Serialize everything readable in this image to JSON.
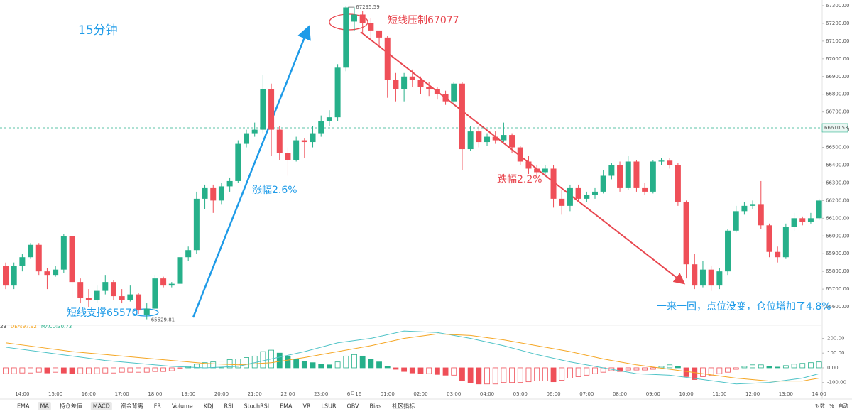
{
  "chart_data": [
    {
      "type": "candlestick",
      "categories": [
        null,
        null,
        "14:00",
        null,
        null,
        null,
        "15:00",
        null,
        null,
        null,
        "16:00",
        null,
        null,
        null,
        "17:00",
        null,
        null,
        null,
        "18:00",
        null,
        null,
        null,
        "19:00",
        null,
        null,
        null,
        "20:00",
        null,
        null,
        null,
        "21:00",
        null,
        null,
        null,
        "22:00",
        null,
        null,
        null,
        "23:00",
        null,
        null,
        null,
        "6月16",
        null,
        null,
        null,
        "01:00",
        null,
        null,
        null,
        "02:00",
        null,
        null,
        null,
        "03:00",
        null,
        null,
        null,
        "04:00",
        null,
        null,
        null,
        "05:00",
        null,
        null,
        null,
        "06:00",
        null,
        null,
        null,
        "07:00",
        null,
        null,
        null,
        "08:00",
        null,
        null,
        null,
        "09:00",
        null,
        null,
        null,
        "10:00",
        null,
        null,
        null,
        "11:00",
        null,
        null,
        null,
        "12:00",
        null,
        null,
        null,
        "13:00",
        null,
        null,
        null,
        "14:00"
      ],
      "open": [
        65830,
        65720,
        65830,
        65880,
        65950,
        65800,
        65780,
        65810,
        66000,
        65740,
        65650,
        65640,
        65690,
        65740,
        65660,
        65640,
        65670,
        65555,
        65590,
        65760,
        65720,
        65730,
        65880,
        65920,
        66210,
        66270,
        66200,
        66280,
        66310,
        66520,
        66580,
        66600,
        66830,
        66600,
        66470,
        66430,
        66540,
        66530,
        66580,
        66650,
        66670,
        66950,
        67210,
        67250,
        67200,
        67160,
        67120,
        66880,
        66830,
        66900,
        66880,
        66840,
        66830,
        66800,
        66760,
        66860,
        66490,
        66590,
        66530,
        66560,
        66540,
        66570,
        66500,
        66420,
        66380,
        66360,
        66380,
        66210,
        66170,
        66270,
        66210,
        66230,
        66250,
        66340,
        66400,
        66270,
        66420,
        66270,
        66250,
        66420,
        66425,
        66400,
        66190,
        65840,
        65720,
        65810,
        65720,
        65800,
        66030,
        66140,
        66170,
        66180,
        66060,
        65910,
        65880,
        66050,
        66100,
        66080,
        66100
      ],
      "high": [
        65850,
        65850,
        65900,
        65960,
        65960,
        65820,
        65830,
        66010,
        66000,
        65760,
        65700,
        65720,
        65780,
        65750,
        65700,
        65720,
        65680,
        65620,
        65780,
        65770,
        65740,
        65890,
        65940,
        66250,
        66290,
        66290,
        66300,
        66330,
        66540,
        66600,
        66640,
        66910,
        66860,
        66620,
        66500,
        66560,
        66550,
        66620,
        66680,
        66710,
        66970,
        67295.59,
        67290,
        67270,
        67230,
        67150,
        67130,
        66920,
        66920,
        66940,
        66900,
        66870,
        66840,
        66820,
        66870,
        66870,
        66620,
        66620,
        66580,
        66590,
        66640,
        66580,
        66510,
        66450,
        66400,
        66400,
        66400,
        66260,
        66290,
        66290,
        66250,
        66270,
        66370,
        66410,
        66420,
        66450,
        66430,
        66300,
        66430,
        66440,
        66440,
        66410,
        66200,
        65900,
        65860,
        65830,
        65820,
        66040,
        66170,
        66190,
        66200,
        66310,
        66070,
        65940,
        66070,
        66130,
        66110,
        66130,
        66210
      ],
      "low": [
        65700,
        65700,
        65800,
        65870,
        65780,
        65700,
        65770,
        65790,
        65650,
        65620,
        65600,
        65620,
        65670,
        65640,
        65620,
        65630,
        65560,
        65529.81,
        65580,
        65710,
        65710,
        65720,
        65860,
        65900,
        66150,
        66130,
        66180,
        66250,
        66300,
        66500,
        66560,
        66580,
        66450,
        66430,
        66340,
        66420,
        66440,
        66500,
        66560,
        66620,
        66650,
        66930,
        67160,
        67140,
        67100,
        67070,
        66780,
        66760,
        66760,
        66840,
        66800,
        66790,
        66770,
        66740,
        66740,
        66370,
        66480,
        66500,
        66510,
        66520,
        66530,
        66470,
        66400,
        66350,
        66330,
        66340,
        66160,
        66120,
        66140,
        66190,
        66190,
        66210,
        66240,
        66320,
        66250,
        66260,
        66250,
        66230,
        66240,
        66400,
        66380,
        66170,
        65760,
        65700,
        65710,
        65690,
        65700,
        65780,
        66020,
        66120,
        66150,
        66040,
        65880,
        65850,
        65870,
        66030,
        66060,
        66070,
        66090
      ],
      "close": [
        65720,
        65830,
        65880,
        65950,
        65800,
        65780,
        65810,
        66000,
        65740,
        65650,
        65640,
        65690,
        65740,
        65660,
        65640,
        65670,
        65580,
        65590,
        65760,
        65720,
        65730,
        65880,
        65920,
        66210,
        66270,
        66200,
        66280,
        66310,
        66520,
        66580,
        66600,
        66830,
        66600,
        66470,
        66430,
        66540,
        66530,
        66580,
        66650,
        66670,
        66950,
        67290,
        67250,
        67200,
        67160,
        67120,
        66880,
        66830,
        66900,
        66880,
        66840,
        66830,
        66800,
        66760,
        66860,
        66490,
        66590,
        66530,
        66560,
        66540,
        66570,
        66500,
        66420,
        66380,
        66360,
        66380,
        66210,
        66170,
        66270,
        66210,
        66230,
        66250,
        66340,
        66400,
        66270,
        66420,
        66270,
        66250,
        66420,
        66425,
        66400,
        66190,
        65840,
        65720,
        65810,
        65720,
        65800,
        66030,
        66140,
        66170,
        66180,
        66060,
        65910,
        65880,
        66050,
        66100,
        66080,
        66100,
        66200
      ],
      "up_color": "#26b08a",
      "down_color": "#ef4f58",
      "ylim": [
        65508,
        67332
      ],
      "yticks": [
        {
          "value": 65600,
          "label": "65600.00"
        },
        {
          "value": 65700,
          "label": "65700.00"
        },
        {
          "value": 65800,
          "label": "65800.00"
        },
        {
          "value": 65900,
          "label": "65900.00"
        },
        {
          "value": 66000,
          "label": "66000.00"
        },
        {
          "value": 66100,
          "label": "66100.00"
        },
        {
          "value": 66200,
          "label": "66200.00"
        },
        {
          "value": 66300,
          "label": "66300.00"
        },
        {
          "value": 66400,
          "label": "66400.00"
        },
        {
          "value": 66500,
          "label": "66500.00"
        },
        {
          "value": 66600,
          "label": "66600.00"
        },
        {
          "value": 66700,
          "label": "66700.00"
        },
        {
          "value": 66800,
          "label": "66800.00"
        },
        {
          "value": 66900,
          "label": "66900.00"
        },
        {
          "value": 67000,
          "label": "67000.00"
        },
        {
          "value": 67100,
          "label": "67100.00"
        },
        {
          "value": 67200,
          "label": "67200.00"
        },
        {
          "value": 67300,
          "label": "67300.00"
        }
      ],
      "price_line": 66610.53,
      "annotations": [
        "15分钟",
        "涨幅2.6%",
        "短线压制67077",
        "跌幅2.2%",
        "短线支撑65570",
        "一来一回，点位没变，仓位增加了4.8%"
      ]
    },
    {
      "type": "macd",
      "header_labels": [
        "29",
        "DEA:97.92",
        "MACD:30.73"
      ],
      "values": [
        -40,
        -40,
        -35,
        -35,
        -30,
        -35,
        -30,
        -35,
        -40,
        -40,
        -40,
        -40,
        -35,
        -35,
        -30,
        -30,
        -30,
        -30,
        -25,
        -25,
        -20,
        -5,
        10,
        25,
        35,
        40,
        45,
        55,
        60,
        70,
        80,
        110,
        120,
        100,
        80,
        60,
        45,
        35,
        25,
        20,
        40,
        80,
        90,
        80,
        60,
        40,
        10,
        -10,
        -25,
        -35,
        -40,
        -40,
        -45,
        -50,
        -50,
        -90,
        -100,
        -110,
        -110,
        -110,
        -100,
        -100,
        -100,
        -95,
        -90,
        -90,
        -95,
        -85,
        -70,
        -60,
        -50,
        -40,
        -30,
        -20,
        -25,
        -15,
        -15,
        -15,
        -10,
        10,
        20,
        10,
        -60,
        -80,
        -60,
        -50,
        -40,
        -30,
        -10,
        10,
        20,
        20,
        10,
        5,
        15,
        25,
        30,
        35,
        40
      ],
      "lines": [
        {
          "color": "#4fc3c7",
          "x": [
            0,
            4,
            8,
            12,
            16,
            20,
            24,
            28,
            32,
            36,
            40,
            44,
            48,
            52,
            56,
            60,
            64,
            68,
            72,
            76,
            80,
            84,
            88,
            92,
            96,
            98
          ],
          "values": [
            140,
            110,
            80,
            50,
            30,
            10,
            0,
            10,
            60,
            110,
            170,
            200,
            250,
            240,
            200,
            150,
            90,
            40,
            0,
            -40,
            -50,
            -80,
            -110,
            -100,
            -70,
            -40
          ]
        },
        {
          "color": "#f5a623",
          "x": [
            0,
            4,
            8,
            12,
            16,
            20,
            24,
            28,
            32,
            36,
            40,
            44,
            48,
            52,
            56,
            60,
            64,
            68,
            72,
            76,
            80,
            84,
            88,
            92,
            96,
            98
          ],
          "values": [
            170,
            140,
            110,
            90,
            70,
            50,
            30,
            20,
            35,
            70,
            110,
            150,
            200,
            230,
            220,
            190,
            150,
            110,
            60,
            20,
            -10,
            -40,
            -70,
            -90,
            -90,
            -70
          ]
        }
      ],
      "ylim": [
        -145,
        270
      ],
      "yticks": [
        {
          "value": 200,
          "label": "200.00"
        },
        {
          "value": 100,
          "label": "100.00"
        },
        {
          "value": 0,
          "label": "0.00"
        },
        {
          "value": -100,
          "label": "-100.00"
        }
      ]
    }
  ],
  "toolbar": {
    "items": [
      {
        "label": "EMA",
        "active": false
      },
      {
        "label": "MA",
        "active": true
      },
      {
        "label": "持仓差值",
        "active": false
      },
      {
        "label": "MACD",
        "active": true
      },
      {
        "label": "资金背离",
        "active": false
      },
      {
        "label": "FR",
        "active": false
      },
      {
        "label": "Volume",
        "active": false
      },
      {
        "label": "KDJ",
        "active": false
      },
      {
        "label": "RSI",
        "active": false
      },
      {
        "label": "StochRSI",
        "active": false
      },
      {
        "label": "EMA",
        "active": false
      },
      {
        "label": "VR",
        "active": false
      },
      {
        "label": "LSUR",
        "active": false
      },
      {
        "label": "OBV",
        "active": false
      },
      {
        "label": "Bias",
        "active": false
      },
      {
        "label": "社区指标",
        "active": false
      }
    ],
    "right": [
      "对数",
      "%",
      "自动"
    ]
  }
}
